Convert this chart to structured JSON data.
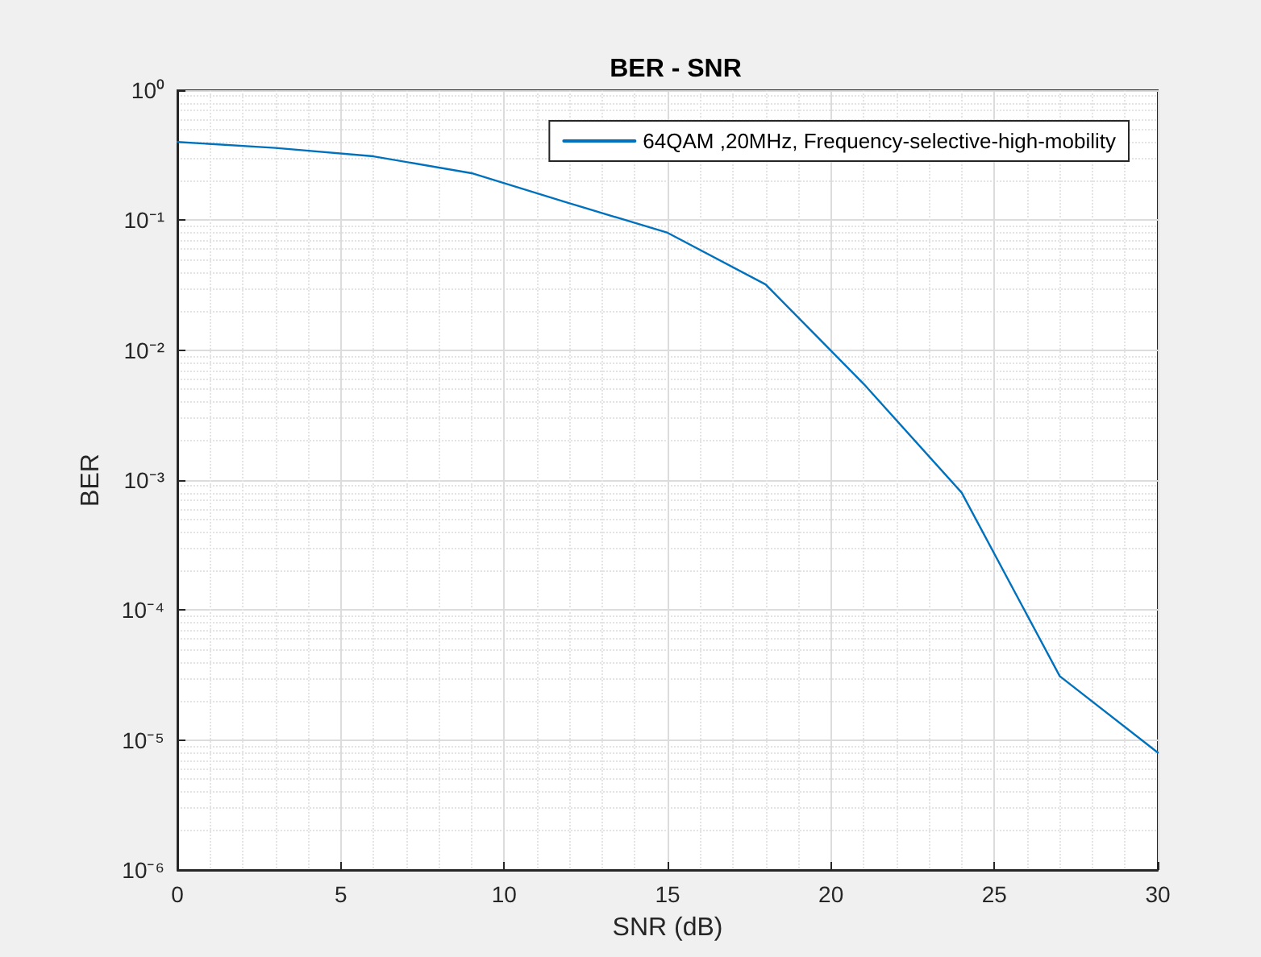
{
  "chart_data": {
    "type": "line",
    "title": "BER - SNR",
    "xlabel": "SNR (dB)",
    "ylabel": "BER",
    "x": [
      0,
      3,
      6,
      9,
      12,
      15,
      18,
      21,
      24,
      27,
      30
    ],
    "series": [
      {
        "name": "64QAM ,20MHz, Frequency-selective-high-mobility",
        "color": "#0072bd",
        "values": [
          0.4,
          0.36,
          0.31,
          0.23,
          0.135,
          0.08,
          0.032,
          0.0055,
          0.0008,
          3.1e-05,
          8e-06
        ]
      }
    ],
    "xlim": [
      0,
      30
    ],
    "xticks": [
      0,
      5,
      10,
      15,
      20,
      25,
      30
    ],
    "ylim": [
      1e-06,
      1
    ],
    "yticks": [
      {
        "value": 1e-06,
        "label": "10⁻⁶"
      },
      {
        "value": 1e-05,
        "label": "10⁻⁵"
      },
      {
        "value": 0.0001,
        "label": "10⁻⁴"
      },
      {
        "value": 0.001,
        "label": "10⁻³"
      },
      {
        "value": 0.01,
        "label": "10⁻²"
      },
      {
        "value": 0.1,
        "label": "10⁻¹"
      },
      {
        "value": 1,
        "label": "10⁰"
      }
    ],
    "log": "y",
    "grid": true,
    "legend": "top right",
    "marker": "none",
    "line_style": "solid"
  }
}
